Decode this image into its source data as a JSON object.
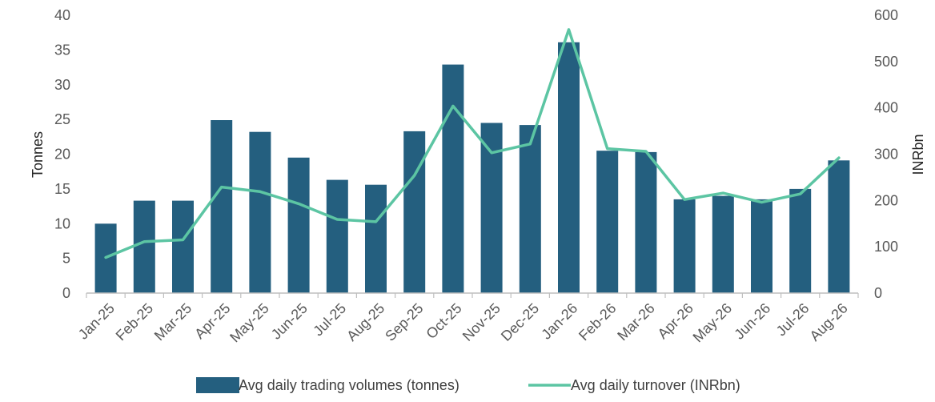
{
  "chart_data": {
    "type": "bar+line",
    "categories": [
      "Jan-25",
      "Feb-25",
      "Mar-25",
      "Apr-25",
      "May-25",
      "Jun-25",
      "Jul-25",
      "Aug-25",
      "Sep-25",
      "Oct-25",
      "Nov-25",
      "Dec-25",
      "Jan-26",
      "Feb-26",
      "Mar-26",
      "Apr-26",
      "May-26",
      "Jun-26",
      "Jul-26",
      "Aug-26"
    ],
    "series": [
      {
        "name": "Avg daily trading volumes (tonnes)",
        "type": "bar",
        "axis": "left",
        "color": "#245f7f",
        "values": [
          10.0,
          13.3,
          13.3,
          24.9,
          23.2,
          19.5,
          16.3,
          15.6,
          23.3,
          32.9,
          24.5,
          24.2,
          36.1,
          20.5,
          20.3,
          13.5,
          14.0,
          13.5,
          15.0,
          19.1
        ]
      },
      {
        "name": "Avg daily turnover (INRbn)",
        "type": "line",
        "axis": "right",
        "color": "#5cc5a3",
        "values": [
          77,
          111,
          115,
          229,
          219,
          193,
          159,
          154,
          254,
          404,
          303,
          322,
          569,
          312,
          306,
          202,
          216,
          196,
          214,
          292
        ]
      }
    ],
    "ylabel": "Tonnes",
    "y2label": "INRbn",
    "ylim": [
      0,
      40
    ],
    "y2lim": [
      0,
      600
    ],
    "yticks": [
      "0",
      "5",
      "10",
      "15",
      "20",
      "25",
      "30",
      "35",
      "40"
    ],
    "y2ticks": [
      "0",
      "100",
      "200",
      "300",
      "400",
      "500",
      "600"
    ],
    "grid": false,
    "legend_position": "bottom"
  }
}
